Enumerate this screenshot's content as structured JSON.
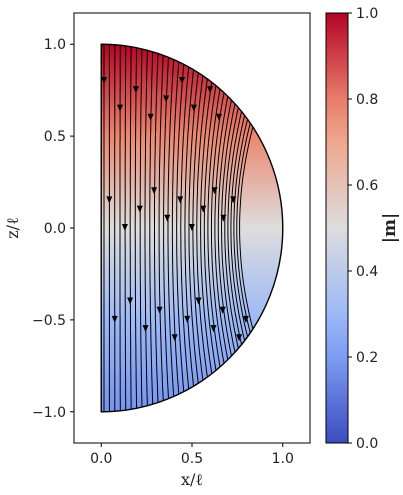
{
  "chart_data": {
    "type": "streamplot",
    "xlabel": "x/ℓ",
    "ylabel": "z/ℓ",
    "xlim": [
      -0.15,
      1.15
    ],
    "ylim": [
      -1.17,
      1.17
    ],
    "x_ticks": [
      0.0,
      0.5,
      1.0
    ],
    "x_tick_labels": [
      "0.0",
      "0.5",
      "1.0"
    ],
    "y_ticks": [
      -1.0,
      -0.5,
      0.0,
      0.5,
      1.0
    ],
    "y_tick_labels": [
      "−1.0",
      "−0.5",
      "0.0",
      "0.5",
      "1.0"
    ],
    "region": "half-disk, x ≥ 0, radius 1",
    "field_direction": "downward (−z)",
    "grid": false,
    "colorbar": {
      "label": "|m|",
      "colormap": "coolwarm",
      "range": [
        0.0,
        1.0
      ],
      "ticks": [
        0.0,
        0.2,
        0.4,
        0.6,
        0.8,
        1.0
      ],
      "tick_labels": [
        "0.0",
        "0.2",
        "0.4",
        "0.6",
        "0.8",
        "1.0"
      ]
    },
    "magnitude_profile": {
      "z": [
        1.0,
        0.5,
        0.0,
        -0.5,
        -1.0
      ],
      "m": [
        1.0,
        0.78,
        0.5,
        0.3,
        0.18
      ]
    },
    "colors": {
      "low": "#3b4cc0",
      "mid": "#dddddd",
      "high": "#b40426",
      "streamline": "#000000"
    }
  }
}
